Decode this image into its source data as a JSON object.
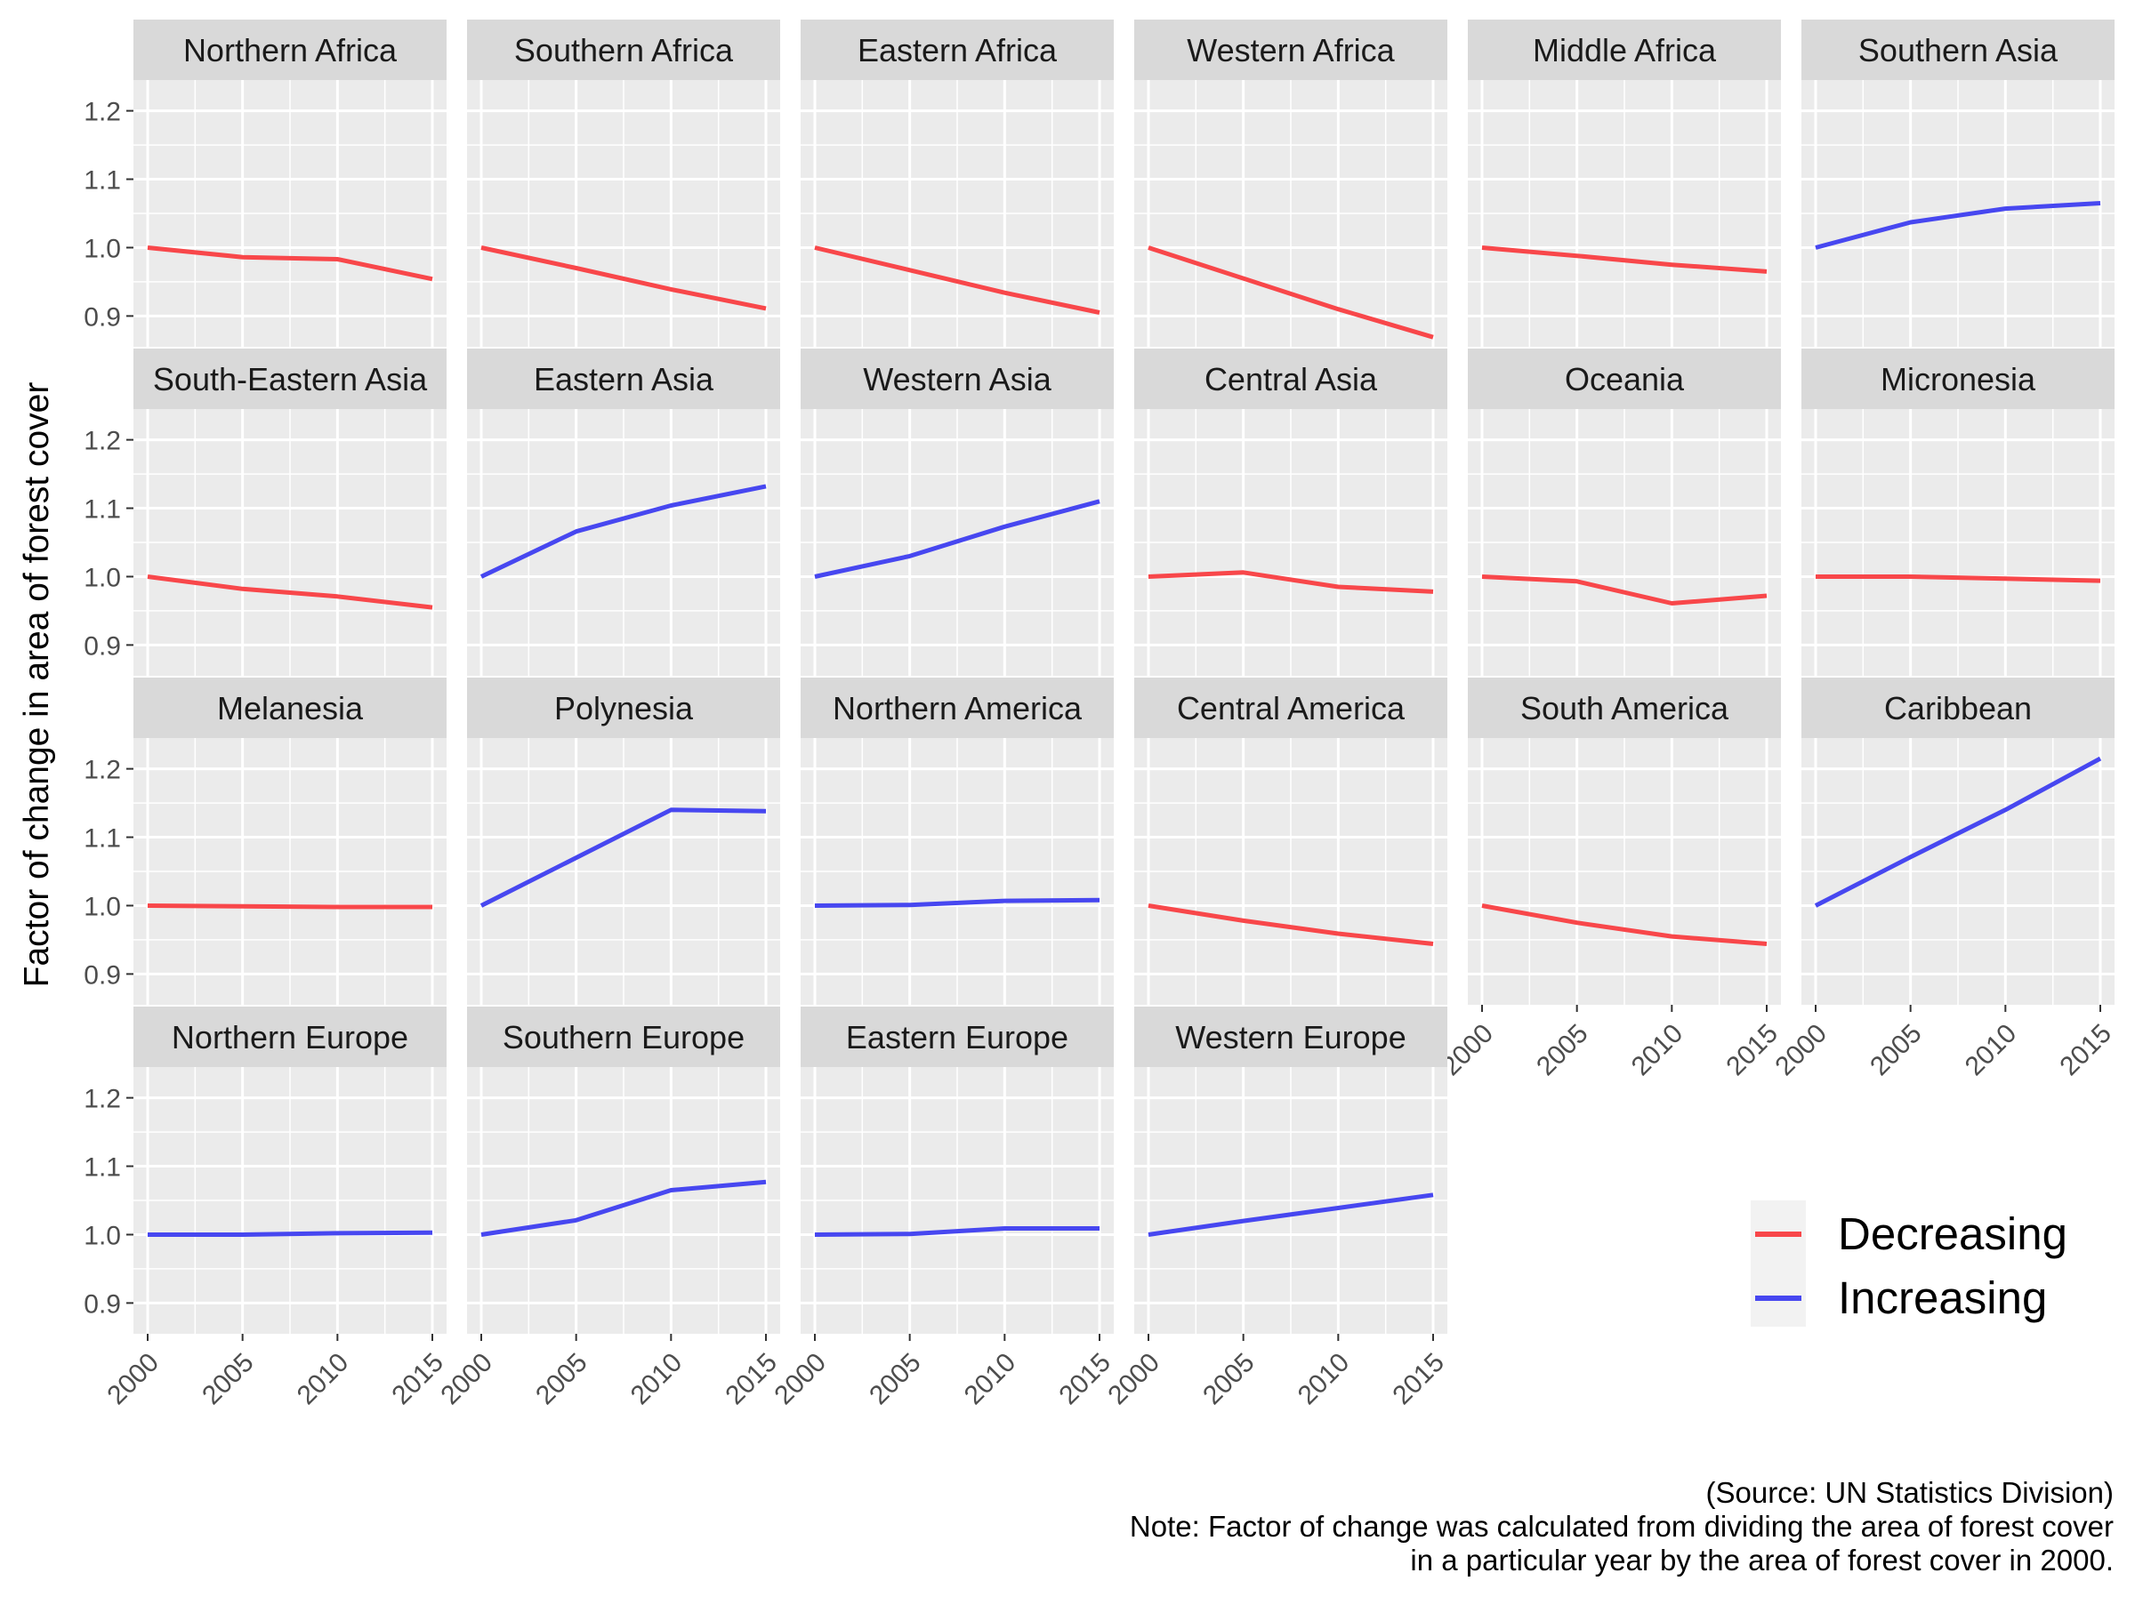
{
  "chart_data": {
    "type": "line",
    "ylabel": "Factor of change in area of forest cover",
    "x": [
      2000,
      2005,
      2010,
      2015
    ],
    "x_ticks": [
      "2000",
      "2005",
      "2010",
      "2015"
    ],
    "y_ticks": [
      "0.9",
      "1.0",
      "1.1",
      "1.2"
    ],
    "ylim": [
      0.855,
      1.245
    ],
    "xlim": [
      1999.25,
      2015.75
    ],
    "grid": true,
    "legend": {
      "placement": "bottom-right",
      "entries": [
        {
          "label": "Decreasing",
          "color": "#f8474a"
        },
        {
          "label": "Increasing",
          "color": "#4747f0"
        }
      ]
    },
    "caption": [
      "(Source: UN Statistics Division)",
      "Note: Factor of change was calculated from dividing the area of forest cover",
      "in a particular year by the area of forest cover in 2000."
    ],
    "panels": [
      {
        "title": "Northern Africa",
        "trend": "Decreasing",
        "values": [
          1.0,
          0.986,
          0.983,
          0.954
        ]
      },
      {
        "title": "Southern Africa",
        "trend": "Decreasing",
        "values": [
          1.0,
          0.97,
          0.939,
          0.911
        ]
      },
      {
        "title": "Eastern Africa",
        "trend": "Decreasing",
        "values": [
          1.0,
          0.967,
          0.934,
          0.905
        ]
      },
      {
        "title": "Western Africa",
        "trend": "Decreasing",
        "values": [
          1.0,
          0.955,
          0.91,
          0.869
        ]
      },
      {
        "title": "Middle Africa",
        "trend": "Decreasing",
        "values": [
          1.0,
          0.988,
          0.975,
          0.965
        ]
      },
      {
        "title": "Southern Asia",
        "trend": "Increasing",
        "values": [
          1.0,
          1.037,
          1.057,
          1.065
        ]
      },
      {
        "title": "South-Eastern Asia",
        "trend": "Decreasing",
        "values": [
          1.0,
          0.982,
          0.971,
          0.955
        ]
      },
      {
        "title": "Eastern Asia",
        "trend": "Increasing",
        "values": [
          1.0,
          1.066,
          1.104,
          1.132
        ]
      },
      {
        "title": "Western Asia",
        "trend": "Increasing",
        "values": [
          1.0,
          1.03,
          1.073,
          1.11
        ]
      },
      {
        "title": "Central Asia",
        "trend": "Decreasing",
        "values": [
          1.0,
          1.006,
          0.985,
          0.978
        ]
      },
      {
        "title": "Oceania",
        "trend": "Decreasing",
        "values": [
          1.0,
          0.993,
          0.961,
          0.972
        ]
      },
      {
        "title": "Micronesia",
        "trend": "Decreasing",
        "values": [
          1.0,
          1.0,
          0.997,
          0.994
        ]
      },
      {
        "title": "Melanesia",
        "trend": "Decreasing",
        "values": [
          1.0,
          0.999,
          0.998,
          0.998
        ]
      },
      {
        "title": "Polynesia",
        "trend": "Increasing",
        "values": [
          1.0,
          1.07,
          1.14,
          1.138
        ]
      },
      {
        "title": "Northern America",
        "trend": "Increasing",
        "values": [
          1.0,
          1.001,
          1.007,
          1.008
        ]
      },
      {
        "title": "Central America",
        "trend": "Decreasing",
        "values": [
          1.0,
          0.978,
          0.959,
          0.944
        ]
      },
      {
        "title": "South America",
        "trend": "Decreasing",
        "values": [
          1.0,
          0.975,
          0.955,
          0.944
        ]
      },
      {
        "title": "Caribbean",
        "trend": "Increasing",
        "values": [
          1.0,
          1.071,
          1.14,
          1.215
        ]
      },
      {
        "title": "Northern Europe",
        "trend": "Increasing",
        "values": [
          1.0,
          1.0,
          1.002,
          1.003
        ]
      },
      {
        "title": "Southern Europe",
        "trend": "Increasing",
        "values": [
          1.0,
          1.021,
          1.065,
          1.077
        ]
      },
      {
        "title": "Eastern Europe",
        "trend": "Increasing",
        "values": [
          1.0,
          1.001,
          1.009,
          1.009
        ]
      },
      {
        "title": "Western Europe",
        "trend": "Increasing",
        "values": [
          1.0,
          1.02,
          1.039,
          1.058
        ]
      }
    ]
  }
}
